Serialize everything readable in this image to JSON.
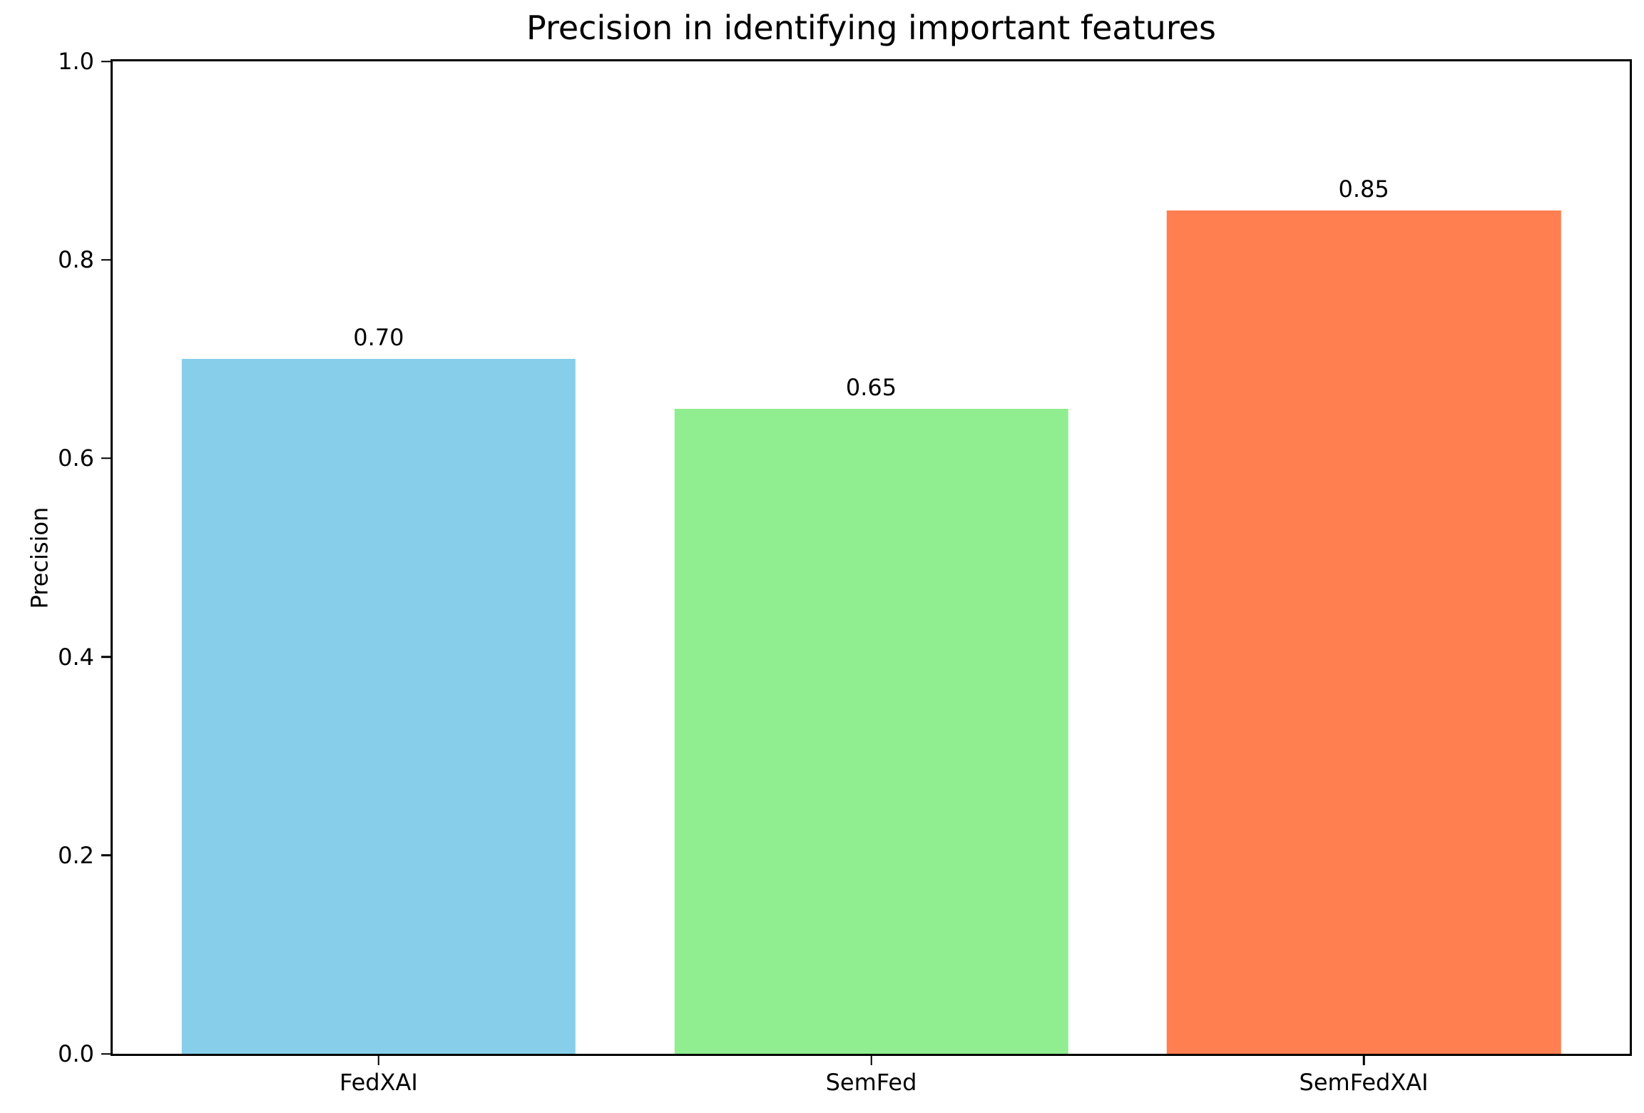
{
  "chart_data": {
    "type": "bar",
    "title": "Precision in identifying important features",
    "xlabel": "",
    "ylabel": "Precision",
    "categories": [
      "FedXAI",
      "SemFed",
      "SemFedXAI"
    ],
    "values": [
      0.7,
      0.65,
      0.85
    ],
    "bar_value_labels": [
      "0.70",
      "0.65",
      "0.85"
    ],
    "bar_colors": [
      "#87ceeb",
      "#90ee90",
      "#ff7f50"
    ],
    "ylim": [
      0.0,
      1.0
    ],
    "ytick_values": [
      0.0,
      0.2,
      0.4,
      0.6,
      0.8,
      1.0
    ],
    "ytick_labels": [
      "0.0",
      "0.2",
      "0.4",
      "0.6",
      "0.8",
      "1.0"
    ],
    "xlim": [
      -0.54,
      2.54
    ],
    "bar_width": 0.8,
    "grid": false,
    "legend_position": "none",
    "background_color": "#ffffff",
    "spine_color": "#000000",
    "text_color": "#000000"
  }
}
